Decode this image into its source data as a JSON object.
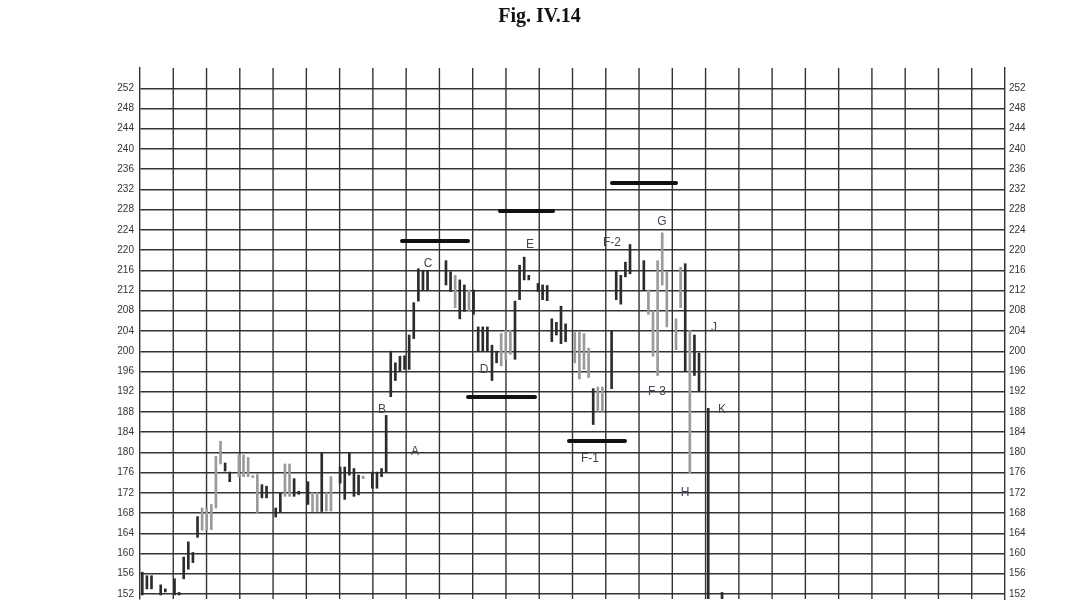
{
  "chart_data": {
    "type": "bar",
    "title": "Fig. IV.14",
    "categories": [
      null,
      null,
      null,
      null,
      null,
      null,
      null,
      null,
      null,
      null,
      null,
      null,
      null,
      null,
      null,
      null,
      null,
      null,
      null,
      null,
      null,
      null,
      null,
      null,
      null,
      null,
      null,
      null,
      null,
      null,
      null,
      null,
      null,
      null,
      null,
      null,
      null,
      null,
      null,
      null,
      null,
      null,
      null,
      null,
      null,
      null,
      null,
      null,
      null,
      null,
      null,
      null,
      null,
      null,
      null,
      null,
      null,
      null,
      null,
      null,
      null,
      null,
      null,
      null,
      null,
      null,
      null,
      null,
      null,
      null,
      null,
      null,
      null,
      null,
      null,
      null,
      null,
      null,
      null,
      null,
      null,
      null,
      null,
      null,
      null,
      null,
      null,
      null,
      null,
      null,
      null,
      null,
      null,
      null,
      null,
      null,
      null,
      null,
      null,
      null,
      null,
      null,
      null,
      null,
      null,
      null,
      null,
      null,
      null,
      null,
      null,
      null,
      null,
      null,
      null,
      null,
      null,
      null,
      null,
      null,
      null,
      null,
      null,
      null,
      null,
      null,
      null,
      null,
      null,
      null,
      null,
      null,
      null,
      null,
      null,
      null,
      null,
      null,
      null,
      null,
      null,
      null,
      null,
      null,
      null,
      null,
      null,
      null,
      null,
      null,
      null,
      null,
      null,
      null,
      null,
      null,
      null,
      null,
      null,
      null,
      null,
      null,
      null,
      null,
      null,
      null,
      null,
      null,
      null,
      null,
      null,
      null,
      null,
      null,
      null,
      null,
      null,
      null,
      null,
      null,
      null,
      null,
      null,
      null,
      null,
      null,
      null,
      null
    ],
    "base": [
      151.8,
      153,
      153,
      null,
      151.8,
      152.4,
      null,
      151.8,
      151.8,
      155,
      156.9,
      158.2,
      163.2,
      164.6,
      164.6,
      164.7,
      169,
      177.7,
      176.3,
      174.2,
      null,
      175.2,
      175.2,
      175.2,
      175,
      168.1,
      171,
      171,
      null,
      167.2,
      168.1,
      171.3,
      171.3,
      171.3,
      171.7,
      null,
      169.7,
      168.3,
      168.3,
      168.3,
      168.4,
      168.4,
      null,
      173.9,
      170.7,
      175.5,
      171.3,
      171.6,
      174.8,
      null,
      172.9,
      172.9,
      175.2,
      176.1,
      191,
      194.2,
      196.1,
      196.4,
      196.4,
      202.5,
      209.9,
      212.1,
      212.1,
      null,
      null,
      null,
      213.1,
      211.8,
      208.6,
      206.4,
      207.9,
      207.9,
      207.3,
      200,
      200,
      200,
      194.2,
      197.7,
      197.1,
      198.4,
      199.4,
      198.4,
      210.2,
      214.1,
      214.1,
      null,
      211.8,
      210.2,
      210,
      201.9,
      203.2,
      201.5,
      201.9,
      null,
      197.7,
      194.5,
      196.4,
      194.8,
      185.5,
      188.1,
      188.1,
      null,
      192.6,
      210.2,
      209.3,
      214.7,
      215.3,
      null,
      null,
      212.1,
      207.3,
      199,
      195.2,
      213.1,
      204.8,
      null,
      200.3,
      208.6,
      196.1,
      175.9,
      195.2,
      192,
      null,
      151,
      null,
      null,
      151,
      null,
      null,
      null,
      null,
      null,
      null,
      null,
      null,
      null,
      null,
      null,
      null,
      null,
      null,
      null,
      null,
      null,
      null,
      null,
      null,
      null,
      null,
      null,
      null,
      null,
      null,
      null,
      null,
      null,
      null,
      null,
      null,
      null,
      null,
      null,
      null,
      null,
      null,
      null,
      null,
      null,
      null,
      null,
      null,
      null,
      null,
      null,
      null,
      null,
      null,
      null,
      null,
      null,
      null,
      null,
      null,
      null,
      null,
      null,
      null,
      null
    ],
    "values": [
      4.5,
      2.6,
      2.6,
      null,
      2.0,
      0.6,
      null,
      3.2,
      0.5,
      4.3,
      5.4,
      2.0,
      4.1,
      4.4,
      4.4,
      5.0,
      10.2,
      4.5,
      1.6,
      1.9,
      null,
      4.3,
      4.3,
      3.8,
      0.4,
      7.5,
      2.6,
      2.3,
      null,
      1.8,
      3.8,
      6.4,
      6.4,
      3.5,
      0.6,
      null,
      4.5,
      3.7,
      3.7,
      11.7,
      3.6,
      6.8,
      null,
      3.2,
      6.4,
      4.5,
      5.5,
      3.9,
      0.5,
      null,
      3.2,
      3.2,
      1.6,
      11.2,
      9,
      3.5,
      2.9,
      2.7,
      6.8,
      7.1,
      6.4,
      3.9,
      3.9,
      null,
      null,
      null,
      4.8,
      3.9,
      6.4,
      7.7,
      5.2,
      4.2,
      4.8,
      4.8,
      4.8,
      4.8,
      7,
      2.3,
      6.4,
      5.7,
      4.7,
      11.5,
      6.8,
      4.5,
      0.9,
      null,
      1.6,
      2.9,
      3,
      4.5,
      2.5,
      7.4,
      3.5,
      null,
      6.1,
      9.3,
      7.1,
      5.8,
      7.1,
      4.8,
      4.8,
      null,
      11.5,
      5.8,
      5.7,
      2.9,
      5.8,
      null,
      null,
      5.8,
      4.8,
      9,
      22.7,
      10.3,
      10.9,
      null,
      6.1,
      8,
      21.2,
      28.2,
      8,
      7.6,
      null,
      37.7,
      null,
      null,
      1.3,
      null,
      null,
      null,
      null,
      null,
      null,
      null,
      null,
      null,
      null,
      null,
      null,
      null,
      null,
      null,
      null,
      null,
      null,
      null,
      null,
      null,
      null,
      null,
      null,
      null,
      null,
      null,
      null,
      null,
      null,
      null,
      null,
      null,
      null,
      null,
      null,
      null,
      null,
      null,
      null,
      null,
      null,
      null,
      null,
      null,
      null,
      null,
      null,
      null,
      null,
      null,
      null,
      null,
      null,
      null,
      null,
      null,
      null,
      null,
      null,
      null
    ],
    "colors": [
      "#2b2b2b",
      "#2b2b2b",
      "#2b2b2b",
      null,
      "#2b2b2b",
      "#2b2b2b",
      null,
      "#2b2b2b",
      "#2b2b2b",
      "#2b2b2b",
      "#2b2b2b",
      "#2b2b2b",
      "#2b2b2b",
      "#9a9a9a",
      "#9a9a9a",
      "#9a9a9a",
      "#9a9a9a",
      "#9a9a9a",
      "#2b2b2b",
      "#2b2b2b",
      null,
      "#9a9a9a",
      "#9a9a9a",
      "#9a9a9a",
      "#9a9a9a",
      "#9a9a9a",
      "#2b2b2b",
      "#2b2b2b",
      null,
      "#2b2b2b",
      "#2b2b2b",
      "#9a9a9a",
      "#9a9a9a",
      "#2b2b2b",
      "#2b2b2b",
      null,
      "#2b2b2b",
      "#9a9a9a",
      "#9a9a9a",
      "#2b2b2b",
      "#9a9a9a",
      "#9a9a9a",
      null,
      "#2b2b2b",
      "#2b2b2b",
      "#2b2b2b",
      "#2b2b2b",
      "#2b2b2b",
      "#9a9a9a",
      null,
      "#2b2b2b",
      "#2b2b2b",
      "#2b2b2b",
      "#2b2b2b",
      "#2b2b2b",
      "#2b2b2b",
      "#2b2b2b",
      "#2b2b2b",
      "#2b2b2b",
      "#2b2b2b",
      "#2b2b2b",
      "#2b2b2b",
      "#2b2b2b",
      null,
      null,
      null,
      "#2b2b2b",
      "#2b2b2b",
      "#9a9a9a",
      "#2b2b2b",
      "#2b2b2b",
      "#9a9a9a",
      "#2b2b2b",
      "#2b2b2b",
      "#2b2b2b",
      "#2b2b2b",
      "#2b2b2b",
      "#2b2b2b",
      "#9a9a9a",
      "#9a9a9a",
      "#9a9a9a",
      "#2b2b2b",
      "#2b2b2b",
      "#2b2b2b",
      "#2b2b2b",
      null,
      "#2b2b2b",
      "#2b2b2b",
      "#2b2b2b",
      "#2b2b2b",
      "#2b2b2b",
      "#2b2b2b",
      "#2b2b2b",
      null,
      "#9a9a9a",
      "#9a9a9a",
      "#9a9a9a",
      "#9a9a9a",
      "#2b2b2b",
      "#9a9a9a",
      "#9a9a9a",
      null,
      "#2b2b2b",
      "#2b2b2b",
      "#2b2b2b",
      "#2b2b2b",
      "#2b2b2b",
      null,
      null,
      "#2b2b2b",
      "#9a9a9a",
      "#9a9a9a",
      "#9a9a9a",
      "#9a9a9a",
      "#9a9a9a",
      null,
      "#9a9a9a",
      "#9a9a9a",
      "#2b2b2b",
      "#9a9a9a",
      "#2b2b2b",
      "#2b2b2b",
      null,
      "#2b2b2b",
      null,
      null,
      "#2b2b2b",
      null,
      null,
      null,
      null,
      null,
      null,
      null,
      null,
      null,
      null,
      null,
      null,
      null,
      null,
      null,
      null,
      null,
      null,
      null,
      null,
      null,
      null,
      null,
      null,
      null,
      null,
      null,
      null,
      null,
      null,
      null,
      null,
      null,
      null,
      null,
      null,
      null,
      null,
      null,
      null,
      null,
      null,
      null,
      null,
      null,
      null,
      null,
      null,
      null,
      null,
      null,
      null,
      null,
      null,
      null,
      null,
      null,
      null,
      null,
      null,
      null
    ],
    "annotations": [
      "A",
      "B",
      "C",
      "D",
      "E",
      "F-1",
      "F-2",
      "G",
      "F-3",
      "H",
      "J",
      "K"
    ],
    "ylim": [
      151,
      256
    ],
    "yticks": [
      152,
      156,
      160,
      164,
      168,
      172,
      176,
      180,
      184,
      188,
      192,
      196,
      200,
      204,
      208,
      212,
      216,
      220,
      224,
      228,
      232,
      236,
      240,
      244,
      248,
      252
    ],
    "y2lim": [
      151,
      256
    ],
    "y2ticks": [
      152,
      156,
      160,
      164,
      168,
      172,
      176,
      180,
      184,
      188,
      192,
      196,
      200,
      204,
      208,
      212,
      216,
      220,
      224,
      228,
      232,
      236,
      240,
      244,
      248,
      252
    ],
    "tick_labels": "y",
    "grid": true
  }
}
